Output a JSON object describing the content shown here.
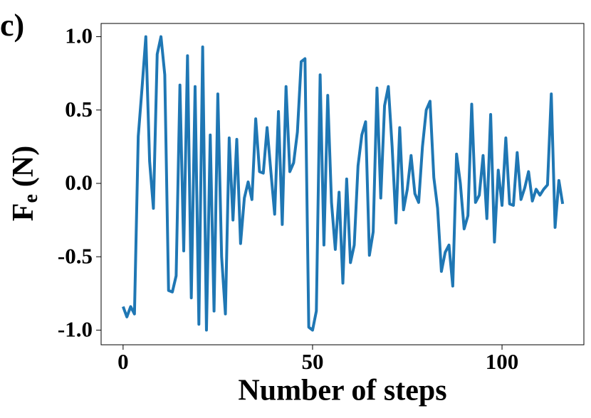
{
  "chart_data": {
    "type": "line",
    "annotation": "c)",
    "xlabel": "Number of steps",
    "ylabel": "F",
    "ylabel_subscript": "e",
    "ylabel_unit": "(N)",
    "xlim": [
      -5.8,
      121.6
    ],
    "ylim": [
      -1.1,
      1.09
    ],
    "xticks": [
      0,
      50,
      100
    ],
    "yticks": [
      {
        "value": -1.0,
        "label": "-1.0"
      },
      -0.5,
      {
        "value": 0.0,
        "label": "0.0"
      },
      0.5,
      {
        "value": 1.0,
        "label": "1.0"
      }
    ],
    "grid": false,
    "series": [
      {
        "name": "Fe",
        "color": "#1f77b4",
        "x": [
          0,
          1,
          2,
          3,
          4,
          5,
          6,
          7,
          8,
          9,
          10,
          11,
          12,
          13,
          14,
          15,
          16,
          17,
          18,
          19,
          20,
          21,
          22,
          23,
          24,
          25,
          26,
          27,
          28,
          29,
          30,
          31,
          32,
          33,
          34,
          35,
          36,
          37,
          38,
          39,
          40,
          41,
          42,
          43,
          44,
          45,
          46,
          47,
          48,
          49,
          50,
          51,
          52,
          53,
          54,
          55,
          56,
          57,
          58,
          59,
          60,
          61,
          62,
          63,
          64,
          65,
          66,
          67,
          68,
          69,
          70,
          71,
          72,
          73,
          74,
          75,
          76,
          77,
          78,
          79,
          80,
          81,
          82,
          83,
          84,
          85,
          86,
          87,
          88,
          89,
          90,
          91,
          92,
          93,
          94,
          95,
          96,
          97,
          98,
          99,
          100,
          101,
          102,
          103,
          104,
          105,
          106,
          107,
          108,
          109,
          110,
          111,
          112,
          113,
          114,
          115,
          116
        ],
        "values": [
          -0.84,
          -0.91,
          -0.84,
          -0.89,
          0.32,
          0.65,
          1.0,
          0.15,
          -0.17,
          0.88,
          1.0,
          0.74,
          -0.73,
          -0.74,
          -0.63,
          0.67,
          -0.46,
          0.87,
          -0.78,
          0.66,
          -0.96,
          0.93,
          -1.0,
          0.33,
          -0.87,
          0.61,
          -0.5,
          -0.89,
          0.31,
          -0.25,
          0.3,
          -0.41,
          -0.1,
          0.01,
          -0.11,
          0.44,
          0.08,
          0.07,
          0.38,
          0.08,
          -0.21,
          0.49,
          -0.28,
          0.66,
          0.08,
          0.14,
          0.35,
          0.83,
          0.85,
          -0.98,
          -1.0,
          -0.87,
          0.74,
          -0.42,
          0.6,
          -0.13,
          -0.45,
          -0.06,
          -0.68,
          0.03,
          -0.54,
          -0.42,
          0.12,
          0.33,
          0.42,
          -0.49,
          -0.33,
          0.65,
          -0.1,
          0.53,
          0.66,
          0.25,
          -0.27,
          0.38,
          -0.18,
          -0.04,
          0.19,
          -0.07,
          -0.13,
          0.25,
          0.5,
          0.56,
          0.04,
          -0.17,
          -0.6,
          -0.47,
          -0.42,
          -0.7,
          0.2,
          0.0,
          -0.31,
          -0.22,
          0.54,
          -0.13,
          -0.08,
          0.19,
          -0.24,
          0.47,
          -0.4,
          0.09,
          -0.15,
          0.31,
          -0.14,
          -0.15,
          0.21,
          -0.11,
          -0.03,
          0.08,
          -0.12,
          -0.04,
          -0.08,
          -0.04,
          -0.01,
          0.61,
          -0.3,
          0.02,
          -0.14
        ]
      }
    ]
  }
}
